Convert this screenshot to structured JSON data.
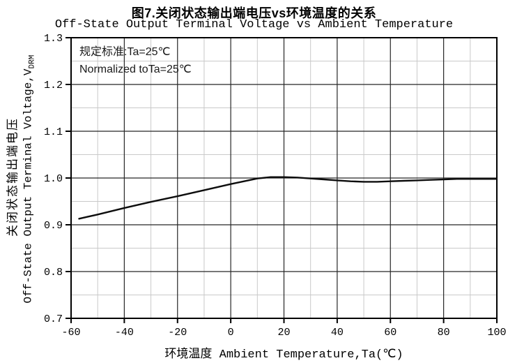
{
  "chart_data": {
    "type": "line",
    "title": "图7.关闭状态输出端电压vs环境温度的关系",
    "subtitle": "Off-State Output Terminal Voltage vs Ambient Temperature",
    "xlabel": "环境温度 Ambient Temperature,Ta(℃)",
    "ylabel_cn": "关闭状态输出端电压",
    "ylabel_en": "Off-State Output Terminal Voltage,V",
    "ylabel_en_sub": "DRM",
    "annotation": {
      "line1": "规定标准:Ta=25℃",
      "line2": "Normalized toTa=25℃"
    },
    "xlim": [
      -60,
      100
    ],
    "ylim": [
      0.7,
      1.3
    ],
    "x_major_ticks": [
      -60,
      -40,
      -20,
      0,
      20,
      40,
      60,
      80,
      100
    ],
    "x_minor_step": 10,
    "y_major_tick_labels": [
      "1.3",
      "1.2",
      "1.1",
      "1.0",
      "0.9",
      "0.8",
      "0.7"
    ],
    "y_minor_step": 0.05,
    "grid": "major-dark minor-light, boxed axes",
    "legend_position": "none",
    "series": [
      {
        "name": "VDRM normalized vs Ta",
        "x": [
          -57,
          -50,
          -40,
          -30,
          -20,
          -10,
          0,
          5,
          10,
          15,
          20,
          25,
          30,
          35,
          40,
          45,
          50,
          55,
          60,
          65,
          70,
          75,
          80,
          85,
          90,
          95,
          100
        ],
        "y": [
          0.913,
          0.922,
          0.936,
          0.949,
          0.961,
          0.974,
          0.987,
          0.993,
          0.999,
          1.002,
          1.002,
          1.001,
          0.999,
          0.997,
          0.995,
          0.993,
          0.992,
          0.992,
          0.993,
          0.994,
          0.995,
          0.996,
          0.997,
          0.998,
          0.998,
          0.998,
          0.998
        ]
      }
    ],
    "colors": {
      "axis": "#000000",
      "major_grid": "#262626",
      "minor_grid": "#c9c9c9",
      "curve": "#0d0d0d",
      "text": "#000000"
    }
  }
}
